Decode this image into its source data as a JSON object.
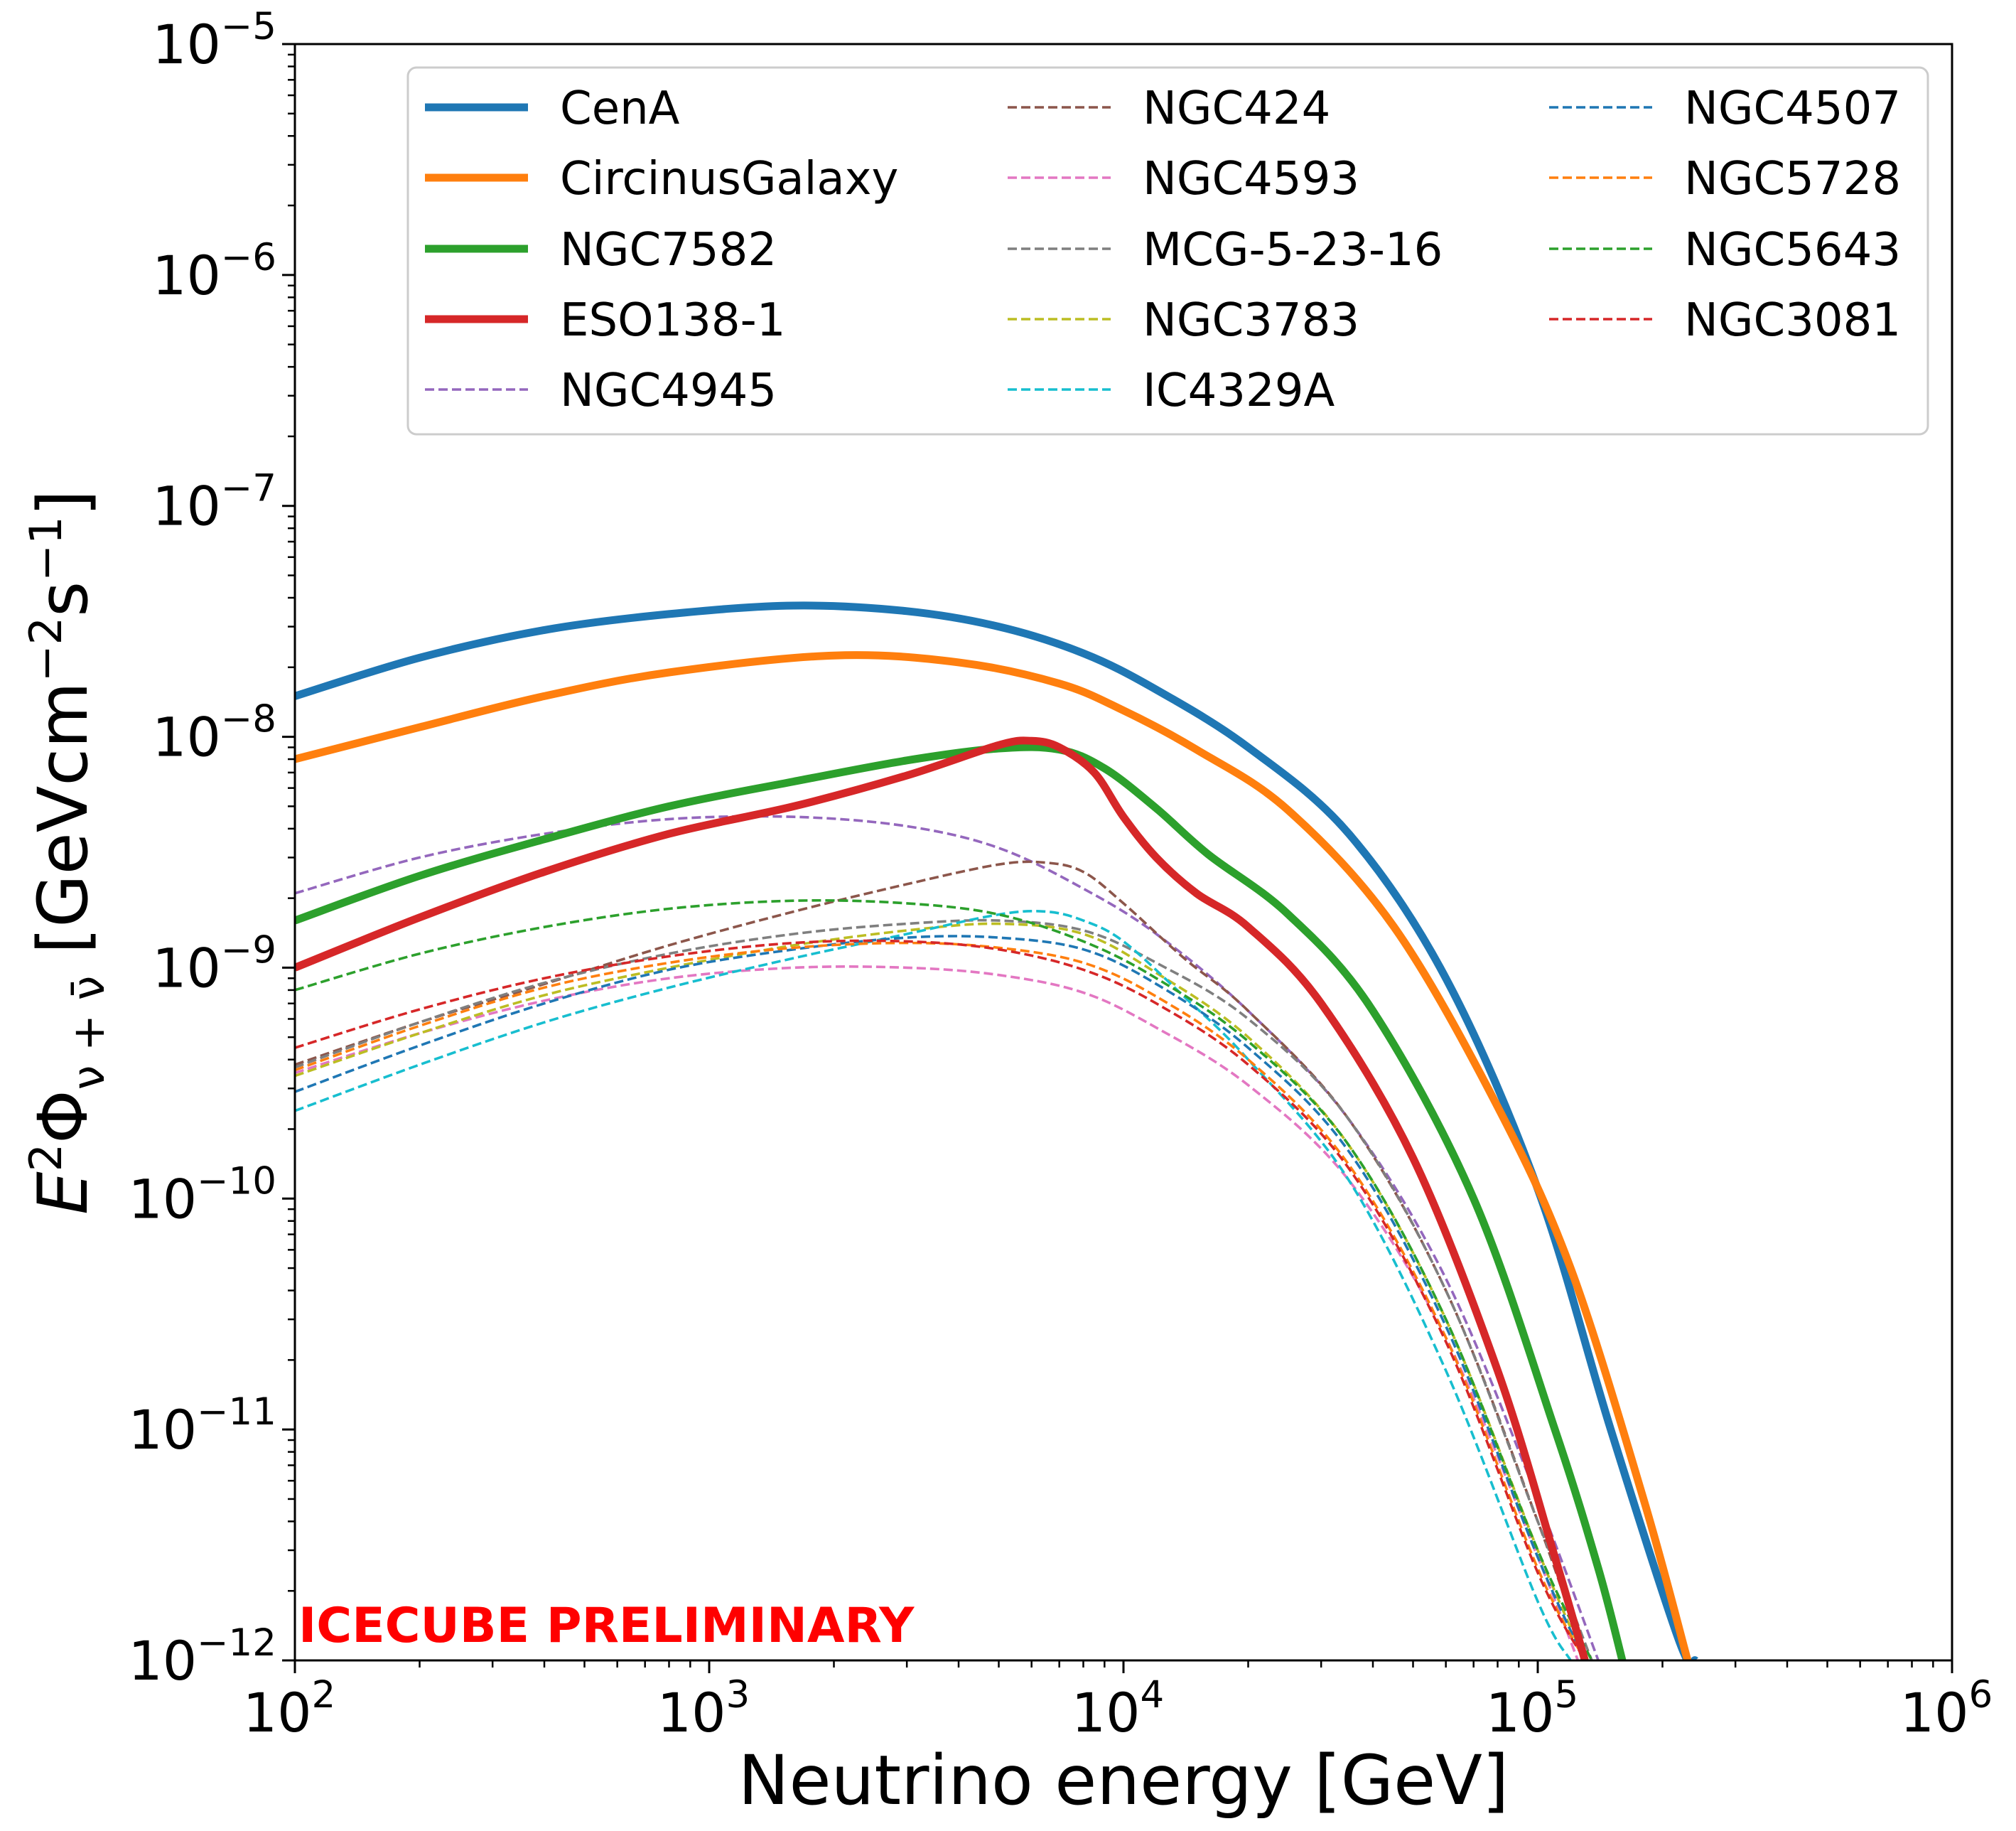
{
  "chart_data": {
    "type": "line",
    "x_scale": "log",
    "y_scale": "log",
    "xlim": [
      100,
      1000000
    ],
    "ylim": [
      1e-12,
      1e-05
    ],
    "xlabel": "Neutrino energy [GeV]",
    "ylabel_parts": {
      "e": "E",
      "e_exp": "2",
      "phi": "Φ",
      "phi_sub": "ν + ν̄",
      "unit_open": " [GeVcm",
      "cm_exp": "−2",
      "s": "s",
      "s_exp": "−1",
      "unit_close": "]"
    },
    "x_ticks": [
      {
        "value": 100,
        "base": "10",
        "exp": "2"
      },
      {
        "value": 1000,
        "base": "10",
        "exp": "3"
      },
      {
        "value": 10000,
        "base": "10",
        "exp": "4"
      },
      {
        "value": 100000,
        "base": "10",
        "exp": "5"
      },
      {
        "value": 1000000,
        "base": "10",
        "exp": "6"
      }
    ],
    "y_ticks": [
      {
        "value": 1e-12,
        "base": "10",
        "exp": "−12"
      },
      {
        "value": 1e-11,
        "base": "10",
        "exp": "−11"
      },
      {
        "value": 1e-10,
        "base": "10",
        "exp": "−10"
      },
      {
        "value": 1e-09,
        "base": "10",
        "exp": "−9"
      },
      {
        "value": 1e-08,
        "base": "10",
        "exp": "−8"
      },
      {
        "value": 1e-07,
        "base": "10",
        "exp": "−7"
      },
      {
        "value": 1e-06,
        "base": "10",
        "exp": "−6"
      },
      {
        "value": 1e-05,
        "base": "10",
        "exp": "−5"
      }
    ],
    "legend_position": "upper right",
    "legend_columns": 3,
    "grid": false,
    "annotation": "ICECUBE PRELIMINARY",
    "annotation_color": "#ff0000",
    "series": [
      {
        "name": "CenA",
        "color": "#1f77b4",
        "style": "solid",
        "x": [
          100,
          200,
          400,
          800,
          1600,
          3000,
          5000,
          8000,
          12000,
          20000,
          35000,
          60000,
          100000,
          150000,
          220000,
          240000
        ],
        "y": [
          1.5e-08,
          2.2e-08,
          2.9e-08,
          3.4e-08,
          3.7e-08,
          3.5e-08,
          3e-08,
          2.3e-08,
          1.6e-08,
          9e-09,
          3.8e-09,
          9e-10,
          1.1e-10,
          1e-11,
          1.2e-12,
          1e-12
        ]
      },
      {
        "name": "CircinusGalaxy",
        "color": "#ff7f0e",
        "style": "solid",
        "x": [
          100,
          200,
          400,
          800,
          2000,
          4000,
          7000,
          10000,
          15000,
          25000,
          45000,
          80000,
          120000,
          180000,
          230000
        ],
        "y": [
          8e-09,
          1.1e-08,
          1.5e-08,
          1.9e-08,
          2.25e-08,
          2.1e-08,
          1.7e-08,
          1.3e-08,
          8.8e-09,
          4.8e-09,
          1.5e-09,
          2.5e-10,
          5e-11,
          5e-12,
          1e-12
        ]
      },
      {
        "name": "NGC7582",
        "color": "#2ca02c",
        "style": "solid",
        "x": [
          100,
          200,
          400,
          800,
          1600,
          3000,
          5000,
          7000,
          9000,
          12000,
          16000,
          25000,
          40000,
          70000,
          110000,
          140000,
          160000
        ],
        "y": [
          1.6e-09,
          2.5e-09,
          3.6e-09,
          5e-09,
          6.4e-09,
          7.9e-09,
          8.9e-09,
          8.8e-09,
          7.3e-09,
          4.9e-09,
          3.1e-09,
          1.7e-09,
          6.5e-10,
          1e-10,
          1e-11,
          2.5e-12,
          1e-12
        ]
      },
      {
        "name": "ESO138-1",
        "color": "#d62728",
        "style": "solid",
        "x": [
          100,
          200,
          400,
          800,
          1600,
          3000,
          5000,
          6000,
          7000,
          8500,
          10000,
          12000,
          15000,
          20000,
          30000,
          50000,
          80000,
          110000,
          130000
        ],
        "y": [
          1e-09,
          1.65e-09,
          2.6e-09,
          3.8e-09,
          5e-09,
          6.8e-09,
          9.2e-09,
          9.6e-09,
          9e-09,
          7e-09,
          4.5e-09,
          3e-09,
          2.1e-09,
          1.5e-09,
          7e-10,
          1.5e-10,
          1.8e-11,
          2.8e-12,
          1e-12
        ]
      },
      {
        "name": "NGC4945",
        "color": "#9467bd",
        "style": "dashed",
        "x": [
          100,
          200,
          400,
          800,
          1600,
          3000,
          5000,
          8000,
          12000,
          20000,
          35000,
          60000,
          100000,
          140000
        ],
        "y": [
          2.1e-09,
          3e-09,
          3.8e-09,
          4.4e-09,
          4.5e-09,
          4.1e-09,
          3.3e-09,
          2.2e-09,
          1.4e-09,
          6.5e-10,
          2.2e-10,
          4.5e-11,
          5e-12,
          1e-12
        ]
      },
      {
        "name": "NGC424",
        "color": "#8c564b",
        "style": "dashed",
        "x": [
          100,
          200,
          400,
          800,
          1600,
          3000,
          5000,
          6500,
          8000,
          10000,
          14000,
          20000,
          35000,
          60000,
          100000,
          130000
        ],
        "y": [
          3.8e-10,
          5.8e-10,
          8.5e-10,
          1.25e-09,
          1.75e-09,
          2.3e-09,
          2.8e-09,
          2.85e-09,
          2.6e-09,
          1.9e-09,
          1.1e-09,
          6.5e-10,
          2.2e-10,
          4e-11,
          4e-12,
          1e-12
        ]
      },
      {
        "name": "NGC4593",
        "color": "#e377c2",
        "style": "dashed",
        "x": [
          100,
          200,
          400,
          800,
          1600,
          3000,
          5000,
          8000,
          12000,
          20000,
          35000,
          60000,
          100000,
          125000
        ],
        "y": [
          3.5e-10,
          5.2e-10,
          7.2e-10,
          9e-10,
          1e-09,
          1e-09,
          9.3e-10,
          7.8e-10,
          5.5e-10,
          3.1e-10,
          1.2e-10,
          2.5e-11,
          2.8e-12,
          1e-12
        ]
      },
      {
        "name": "MCG-5-23-16",
        "color": "#7f7f7f",
        "style": "dashed",
        "x": [
          100,
          200,
          400,
          800,
          1600,
          3000,
          5000,
          8000,
          12000,
          20000,
          35000,
          60000,
          100000,
          135000
        ],
        "y": [
          3.7e-10,
          5.8e-10,
          8.6e-10,
          1.15e-09,
          1.4e-09,
          1.55e-09,
          1.6e-09,
          1.45e-09,
          1.05e-09,
          6e-10,
          2.2e-10,
          4e-11,
          4e-12,
          1e-12
        ]
      },
      {
        "name": "NGC3783",
        "color": "#bcbd22",
        "style": "dashed",
        "x": [
          100,
          200,
          400,
          800,
          1600,
          3000,
          5000,
          8000,
          12000,
          20000,
          35000,
          60000,
          100000,
          130000
        ],
        "y": [
          3.4e-10,
          5.2e-10,
          7.6e-10,
          1e-09,
          1.25e-09,
          1.45e-09,
          1.55e-09,
          1.4e-09,
          9.5e-10,
          5e-10,
          1.7e-10,
          3e-11,
          3e-12,
          1e-12
        ]
      },
      {
        "name": "IC4329A",
        "color": "#17becf",
        "style": "dashed",
        "x": [
          100,
          200,
          400,
          800,
          1600,
          3000,
          5000,
          6500,
          8000,
          10000,
          14000,
          20000,
          35000,
          60000,
          100000,
          120000
        ],
        "y": [
          2.4e-10,
          3.8e-10,
          5.8e-10,
          8.2e-10,
          1.1e-09,
          1.4e-09,
          1.7e-09,
          1.75e-09,
          1.6e-09,
          1.3e-09,
          7.5e-10,
          4e-10,
          1.2e-10,
          1.8e-11,
          1.8e-12,
          1e-12
        ]
      },
      {
        "name": "NGC4507",
        "color": "#1f77b4",
        "style": "dashed",
        "x": [
          100,
          200,
          400,
          800,
          1600,
          3000,
          5000,
          8000,
          12000,
          20000,
          35000,
          60000,
          100000,
          130000
        ],
        "y": [
          2.9e-10,
          4.6e-10,
          7e-10,
          9.8e-10,
          1.2e-09,
          1.35e-09,
          1.35e-09,
          1.2e-09,
          8.5e-10,
          4.5e-10,
          1.6e-10,
          2.8e-11,
          2.8e-12,
          1e-12
        ]
      },
      {
        "name": "NGC5728",
        "color": "#ff7f0e",
        "style": "dashed",
        "x": [
          100,
          200,
          400,
          800,
          1600,
          3000,
          5000,
          8000,
          12000,
          20000,
          35000,
          60000,
          100000,
          130000
        ],
        "y": [
          3.6e-10,
          5.6e-10,
          8.2e-10,
          1.05e-09,
          1.22e-09,
          1.28e-09,
          1.22e-09,
          1.05e-09,
          7.5e-10,
          4e-10,
          1.4e-10,
          2.5e-11,
          2.5e-12,
          1e-12
        ]
      },
      {
        "name": "NGC5643",
        "color": "#2ca02c",
        "style": "dashed",
        "x": [
          100,
          200,
          400,
          800,
          1600,
          3000,
          5000,
          8000,
          12000,
          20000,
          35000,
          60000,
          100000,
          135000
        ],
        "y": [
          8e-10,
          1.15e-09,
          1.5e-09,
          1.8e-09,
          1.95e-09,
          1.9e-09,
          1.7e-09,
          1.3e-09,
          9e-10,
          4.8e-10,
          1.7e-10,
          3e-11,
          3e-12,
          1e-12
        ]
      },
      {
        "name": "NGC3081",
        "color": "#d62728",
        "style": "dashed",
        "x": [
          100,
          200,
          400,
          800,
          1600,
          3000,
          5000,
          8000,
          12000,
          20000,
          35000,
          60000,
          100000,
          130000
        ],
        "y": [
          4.5e-10,
          6.6e-10,
          9e-10,
          1.12e-09,
          1.28e-09,
          1.3e-09,
          1.2e-09,
          9.8e-10,
          7e-10,
          3.8e-10,
          1.35e-10,
          2.4e-11,
          2.4e-12,
          1e-12
        ]
      }
    ]
  }
}
